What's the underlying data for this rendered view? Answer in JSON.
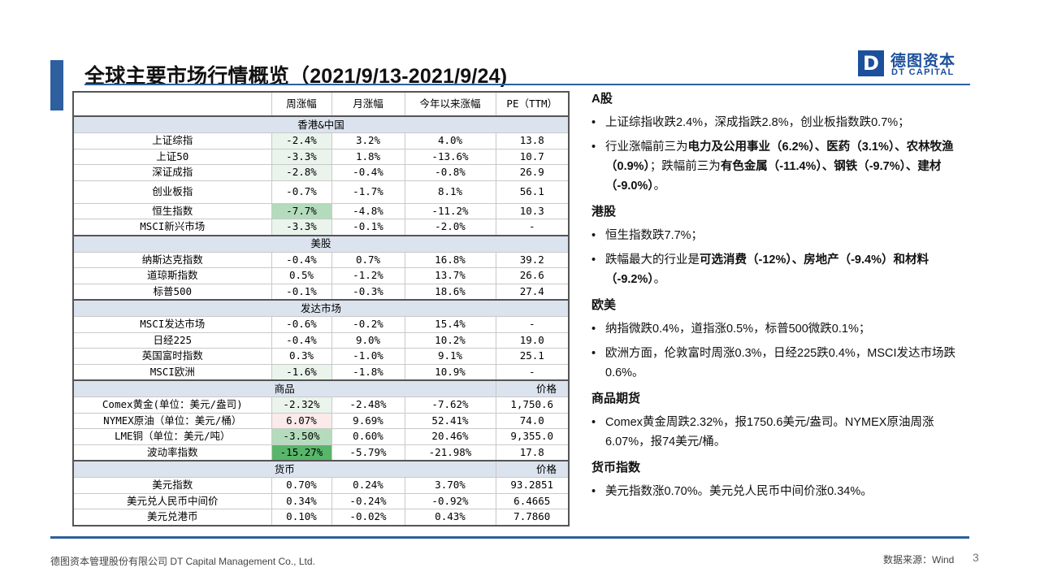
{
  "header": {
    "title": "全球主要市场行情概览（2021/9/13-2021/9/24)",
    "logo_mark": "D",
    "logo_cn": "德图资本",
    "logo_en": "DT CAPITAL"
  },
  "table": {
    "columns": [
      "",
      "周涨幅",
      "月涨幅",
      "今年以来涨幅",
      "PE（TTM）"
    ],
    "sections": [
      {
        "title": "香港&中国",
        "right_label": "",
        "rows": [
          {
            "name": "上证综指",
            "week": "-2.4%",
            "month": "3.2%",
            "ytd": "4.0%",
            "last": "13.8"
          },
          {
            "name": "上证50",
            "week": "-3.3%",
            "month": "1.8%",
            "ytd": "-13.6%",
            "last": "10.7"
          },
          {
            "name": "深证成指",
            "week": "-2.8%",
            "month": "-0.4%",
            "ytd": "-0.8%",
            "last": "26.9"
          },
          {
            "name": "创业板指",
            "week": "-0.7%",
            "month": "-1.7%",
            "ytd": "8.1%",
            "last": "56.1"
          },
          {
            "name": "恒生指数",
            "week": "-7.7%",
            "month": "-4.8%",
            "ytd": "-11.2%",
            "last": "10.3"
          },
          {
            "name": "MSCI新兴市场",
            "week": "-3.3%",
            "month": "-0.1%",
            "ytd": "-2.0%",
            "last": "-"
          }
        ]
      },
      {
        "title": "美股",
        "right_label": "",
        "rows": [
          {
            "name": "纳斯达克指数",
            "week": "-0.4%",
            "month": "0.7%",
            "ytd": "16.8%",
            "last": "39.2"
          },
          {
            "name": "道琼斯指数",
            "week": "0.5%",
            "month": "-1.2%",
            "ytd": "13.7%",
            "last": "26.6"
          },
          {
            "name": "标普500",
            "week": "-0.1%",
            "month": "-0.3%",
            "ytd": "18.6%",
            "last": "27.4"
          }
        ]
      },
      {
        "title": "发达市场",
        "right_label": "",
        "rows": [
          {
            "name": "MSCI发达市场",
            "week": "-0.6%",
            "month": "-0.2%",
            "ytd": "15.4%",
            "last": "-"
          },
          {
            "name": "日经225",
            "week": "-0.4%",
            "month": "9.0%",
            "ytd": "10.2%",
            "last": "19.0"
          },
          {
            "name": "英国富时指数",
            "week": "0.3%",
            "month": "-1.0%",
            "ytd": "9.1%",
            "last": "25.1"
          },
          {
            "name": "MSCI欧洲",
            "week": "-1.6%",
            "month": "-1.8%",
            "ytd": "10.9%",
            "last": "-"
          }
        ]
      },
      {
        "title": "商品",
        "right_label": "价格",
        "rows": [
          {
            "name": "Comex黄金(单位：美元/盎司)",
            "week": "-2.32%",
            "month": "-2.48%",
            "ytd": "-7.62%",
            "last": "1,750.6"
          },
          {
            "name": "NYMEX原油（单位：美元/桶）",
            "week": "6.07%",
            "month": "9.69%",
            "ytd": "52.41%",
            "last": "74.0"
          },
          {
            "name": "LME铜（单位：美元/吨）",
            "week": "-3.50%",
            "month": "0.60%",
            "ytd": "20.46%",
            "last": "9,355.0"
          },
          {
            "name": "波动率指数",
            "week": "-15.27%",
            "month": "-5.79%",
            "ytd": "-21.98%",
            "last": "17.8"
          }
        ]
      },
      {
        "title": "货币",
        "right_label": "价格",
        "rows": [
          {
            "name": "美元指数",
            "week": "0.70%",
            "month": "0.24%",
            "ytd": "3.70%",
            "last": "93.2851"
          },
          {
            "name": "美元兑人民币中间价",
            "week": "0.34%",
            "month": "-0.24%",
            "ytd": "-0.92%",
            "last": "6.4665"
          },
          {
            "name": "美元兑港币",
            "week": "0.10%",
            "month": "-0.02%",
            "ytd": "0.43%",
            "last": "7.7860"
          }
        ]
      }
    ]
  },
  "summary": {
    "a_share": {
      "heading": "A股",
      "b1": "上证综指收跌2.4%，深成指跌2.8%，创业板指数跌0.7%；",
      "b2": [
        {
          "t": "行业涨幅前三为",
          "b": false
        },
        {
          "t": "电力及公用事业（6.2%）、医药（3.1%）、农林牧渔（0.9%）",
          "b": true
        },
        {
          "t": "；跌幅前三为",
          "b": false
        },
        {
          "t": "有色金属（-11.4%）、钢铁（-9.7%）、建材（-9.0%）",
          "b": true
        },
        {
          "t": "。",
          "b": false
        }
      ]
    },
    "hk": {
      "heading": "港股",
      "b1": "恒生指数跌7.7%；",
      "b2": [
        {
          "t": "跌幅最大的行业是",
          "b": false
        },
        {
          "t": "可选消费（-12%）、房地产（-9.4%）和材料（-9.2%）",
          "b": true
        },
        {
          "t": "。",
          "b": false
        }
      ]
    },
    "us_eu": {
      "heading": "欧美",
      "b1": "纳指微跌0.4%，道指涨0.5%，标普500微跌0.1%；",
      "b2": "欧洲方面，伦敦富时周涨0.3%，日经225跌0.4%，MSCI发达市场跌0.6%。"
    },
    "commodity": {
      "heading": "商品期货",
      "b1": "Comex黄金周跌2.32%，报1750.6美元/盎司。NYMEX原油周涨6.07%，报74美元/桶。"
    },
    "fx": {
      "heading": "货币指数",
      "b1": "美元指数涨0.70%。美元兑人民币中间价涨0.34%。"
    }
  },
  "footer": {
    "company": "德图资本管理股份有限公司 DT Capital Management Co., Ltd.",
    "source": "数据来源：Wind",
    "page": "3"
  }
}
